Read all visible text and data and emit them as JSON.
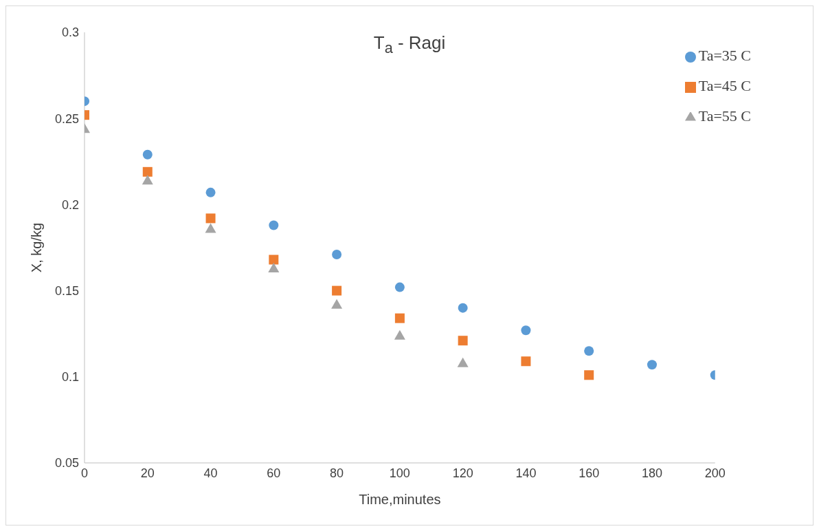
{
  "chart_data": {
    "type": "scatter",
    "title": "T$_{a}$ - Ragi",
    "xlabel": "Time,minutes",
    "ylabel": "X, kg/kg",
    "xlim": [
      0,
      200
    ],
    "xticks": [
      0,
      20,
      40,
      60,
      80,
      100,
      120,
      140,
      160,
      180,
      200
    ],
    "ylim": [
      0.05,
      0.3
    ],
    "yticks": [
      0.05,
      0.1,
      0.15,
      0.2,
      0.25,
      0.3
    ],
    "grid": false,
    "legend": "top right",
    "series": [
      {
        "name": "Ta=35 C",
        "color": "#5b9bd5",
        "marker": "circle",
        "x": [
          0,
          20,
          40,
          60,
          80,
          100,
          120,
          140,
          160,
          180,
          200
        ],
        "values": [
          0.26,
          0.229,
          0.207,
          0.188,
          0.171,
          0.152,
          0.14,
          0.127,
          0.115,
          0.107,
          0.101
        ]
      },
      {
        "name": "Ta=45 C",
        "color": "#ed7d31",
        "marker": "square",
        "x": [
          0,
          20,
          40,
          60,
          80,
          100,
          120,
          140,
          160
        ],
        "values": [
          0.252,
          0.219,
          0.192,
          0.168,
          0.15,
          0.134,
          0.121,
          0.109,
          0.101
        ]
      },
      {
        "name": "Ta=55 C",
        "color": "#a5a5a5",
        "marker": "triangle",
        "x": [
          0,
          20,
          40,
          60,
          80,
          100,
          120
        ],
        "values": [
          0.244,
          0.214,
          0.186,
          0.163,
          0.142,
          0.124,
          0.108
        ]
      }
    ]
  }
}
